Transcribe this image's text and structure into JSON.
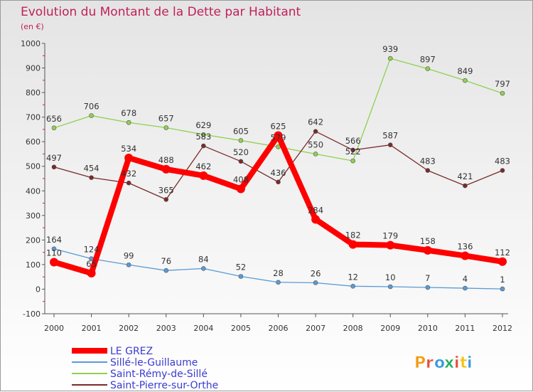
{
  "chart_data": {
    "type": "line",
    "title": "Evolution du Montant de la Dette par Habitant",
    "subtitle": "(en €)",
    "ylim": [
      -100,
      1000
    ],
    "yticks": [
      -100,
      0,
      100,
      200,
      300,
      400,
      500,
      600,
      700,
      800,
      900,
      1000
    ],
    "x": [
      "2000",
      "2001",
      "2002",
      "2003",
      "2004",
      "2005",
      "2006",
      "2007",
      "2008",
      "2009",
      "2010",
      "2011",
      "2012"
    ],
    "grid": false,
    "legend_position": "bottom-left",
    "series": [
      {
        "name": "LE GREZ",
        "color": "#ff0000",
        "values": [
          110,
          65,
          534,
          488,
          462,
          408,
          625,
          284,
          182,
          179,
          158,
          136,
          112
        ],
        "labels": [
          "110",
          "65",
          "534",
          "488",
          "462",
          "408",
          "625",
          "284",
          "182",
          "179",
          "158",
          "136",
          "112"
        ]
      },
      {
        "name": "Sillé-le-Guillaume",
        "color": "#5b9bd5",
        "values": [
          164,
          124,
          99,
          76,
          84,
          52,
          28,
          26,
          12,
          10,
          7,
          4,
          1
        ],
        "labels": [
          "164",
          "124",
          "99",
          "76",
          "84",
          "52",
          "28",
          "26",
          "12",
          "10",
          "7",
          "4",
          "1"
        ]
      },
      {
        "name": "Saint-Rémy-de-Sillé",
        "color": "#8fd14f",
        "values": [
          656,
          706,
          678,
          657,
          629,
          605,
          579,
          550,
          522,
          939,
          897,
          849,
          797
        ],
        "labels": [
          "656",
          "706",
          "678",
          "657",
          "629",
          "605",
          "579",
          "550",
          "522",
          "939",
          "897",
          "849",
          "797"
        ]
      },
      {
        "name": "Saint-Pierre-sur-Orthe",
        "color": "#7a2a2a",
        "values": [
          497,
          454,
          432,
          365,
          583,
          520,
          436,
          642,
          566,
          587,
          483,
          421,
          483
        ],
        "labels": [
          "497",
          "454",
          "432",
          "365",
          "583",
          "520",
          "436",
          "642",
          "566",
          "587",
          "483",
          "421",
          "483"
        ]
      }
    ]
  },
  "logo": {
    "letters": [
      "P",
      "r",
      "o",
      "x",
      "i",
      "t",
      "i"
    ],
    "colors": [
      "#f39c12",
      "#e74c3c",
      "#3498db",
      "#27ae60",
      "#e74c3c",
      "#f1c40f",
      "#3498db"
    ]
  }
}
